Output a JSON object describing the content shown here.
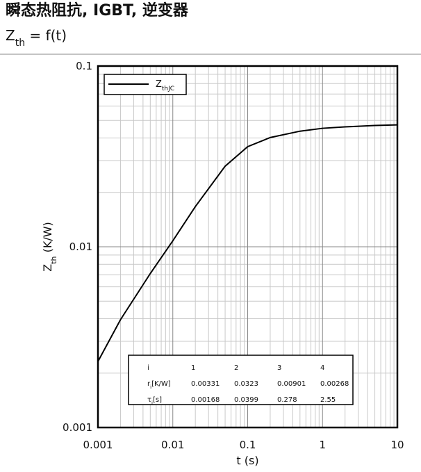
{
  "chart_data": {
    "type": "line",
    "title": "瞬态热阻抗, IGBT, 逆变器",
    "subtitle": [
      "Z",
      "th",
      " = f(t)"
    ],
    "xlabel": "t (s)",
    "ylabel": [
      "Z",
      "th",
      " (K/W)"
    ],
    "xscale": "log",
    "yscale": "log",
    "xlim": [
      0.001,
      10
    ],
    "ylim": [
      0.001,
      0.1
    ],
    "xticks": [
      0.001,
      0.01,
      0.1,
      1,
      10
    ],
    "yticks": [
      0.001,
      0.01,
      0.1
    ],
    "xminorticks": [
      0.002,
      0.003,
      0.004,
      0.005,
      0.006,
      0.007,
      0.008,
      0.009,
      0.02,
      0.03,
      0.04,
      0.05,
      0.06,
      0.07,
      0.08,
      0.09,
      0.2,
      0.3,
      0.4,
      0.5,
      0.6,
      0.7,
      0.8,
      0.9,
      2,
      3,
      4,
      5,
      6,
      7,
      8,
      9
    ],
    "yminorticks": [
      0.002,
      0.003,
      0.004,
      0.005,
      0.006,
      0.007,
      0.008,
      0.009,
      0.02,
      0.03,
      0.04,
      0.05,
      0.06,
      0.07,
      0.08,
      0.09
    ],
    "grid": true,
    "legend": "upper left",
    "x": [
      0.001,
      0.002,
      0.005,
      0.01,
      0.02,
      0.05,
      0.1,
      0.2,
      0.5,
      1,
      2,
      5,
      10
    ],
    "series": [
      {
        "name": "Z",
        "name_sub": "thJC",
        "color": "#000000",
        "values": [
          0.00232,
          0.00395,
          0.00711,
          0.01079,
          0.01669,
          0.02792,
          0.0358,
          0.04022,
          0.04361,
          0.04524,
          0.04605,
          0.04692,
          0.04725
        ]
      }
    ],
    "table": {
      "header": [
        "i",
        "1",
        "2",
        "3",
        "4"
      ],
      "rows": [
        {
          "label": [
            "r",
            "i",
            "[K/W]"
          ],
          "values": [
            0.00331,
            0.0323,
            0.00901,
            0.00268
          ]
        },
        {
          "label": [
            "τ",
            "i",
            "[s]"
          ],
          "values": [
            0.00168,
            0.0399,
            0.278,
            2.55
          ]
        }
      ]
    }
  }
}
